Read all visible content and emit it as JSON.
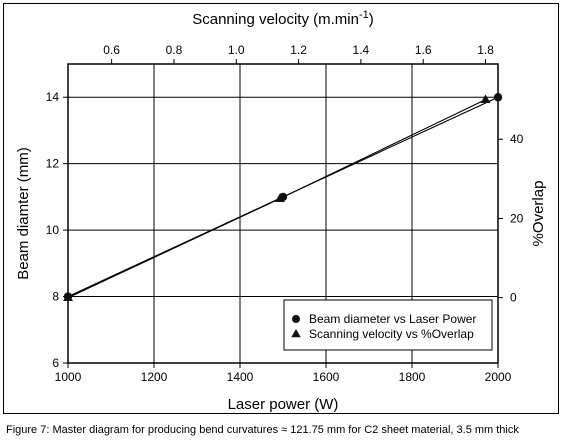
{
  "caption": "Figure 7: Master diagram for producing bend curvatures ≈ 121.75 mm for C2 sheet material, 3.5 mm thick",
  "chart_data": {
    "type": "line",
    "title": "",
    "x_bottom": {
      "label": "Laser power (W)",
      "range": [
        1000,
        2000
      ],
      "ticks": [
        1000,
        1200,
        1400,
        1600,
        1800,
        2000
      ]
    },
    "y_left": {
      "label": "Beam diamter (mm)",
      "range": [
        6,
        15
      ],
      "ticks": [
        6,
        8,
        10,
        12,
        14
      ]
    },
    "x_top": {
      "label": "Scanning velocity (m.min",
      "label_superscript": "-1",
      "label_suffix": ")",
      "range": [
        0.46,
        1.84
      ],
      "ticks": [
        0.6,
        0.8,
        1.0,
        1.2,
        1.4,
        1.6,
        1.8
      ],
      "tick_labels": [
        "0.6",
        "0.8",
        "1.0",
        "1.2",
        "1.4",
        "1.6",
        "1.8"
      ]
    },
    "y_right": {
      "label": "%Overlap",
      "range": [
        -16.5,
        59
      ],
      "ticks": [
        0,
        20,
        40
      ]
    },
    "grid": true,
    "series": [
      {
        "name": "Beam diameter vs Laser Power",
        "axes": "bottom-left",
        "marker": "circle",
        "x": [
          1000,
          1500,
          2000
        ],
        "y": [
          8,
          11,
          14
        ]
      },
      {
        "name": "Scanning velocity vs %Overlap",
        "axes": "top-right",
        "marker": "triangle",
        "x": [
          0.46,
          1.14,
          1.8
        ],
        "y": [
          0,
          25,
          50
        ]
      }
    ],
    "legend_position": "bottom-right"
  }
}
